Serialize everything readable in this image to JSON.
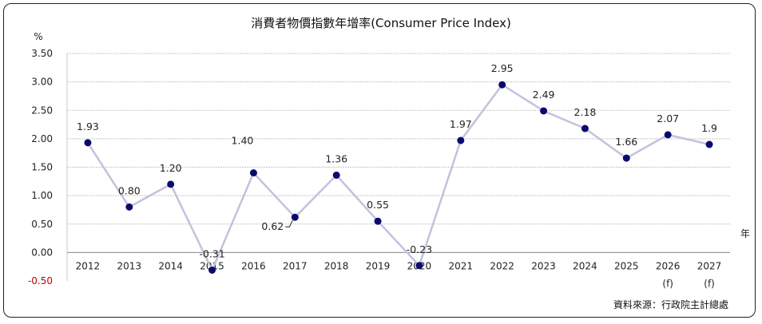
{
  "chart_data": {
    "type": "line",
    "title": "消費者物價指數年增率(Consumer Price Index)",
    "y_unit": "%",
    "x_unit": "年",
    "source": "資料來源：行政院主計總處",
    "ylim": [
      -0.5,
      3.5
    ],
    "yticks": [
      "3.50",
      "3.00",
      "2.50",
      "2.00",
      "1.50",
      "1.00",
      "0.50",
      "0.00",
      "-0.50"
    ],
    "ytick_values": [
      3.5,
      3.0,
      2.5,
      2.0,
      1.5,
      1.0,
      0.5,
      0.0,
      -0.5
    ],
    "grid": true,
    "categories": [
      "2012",
      "2013",
      "2014",
      "2015",
      "2016",
      "2017",
      "2018",
      "2019",
      "2020",
      "2021",
      "2022",
      "2023",
      "2024",
      "2025",
      "2026",
      "2027"
    ],
    "category_notes": [
      "",
      "",
      "",
      "",
      "",
      "",
      "",
      "",
      "",
      "",
      "",
      "",
      "",
      "",
      "(f)",
      "(f)"
    ],
    "values": [
      1.93,
      0.8,
      1.2,
      -0.31,
      1.4,
      0.62,
      1.36,
      0.55,
      -0.23,
      1.97,
      2.95,
      2.49,
      2.18,
      1.66,
      2.07,
      1.9
    ],
    "labels": [
      "1.93",
      "0.80",
      "1.20",
      "-0.31",
      "1.40",
      "0.62",
      "1.36",
      "0.55",
      "-0.23",
      "1.97",
      "2.95",
      "2.49",
      "2.18",
      "1.66",
      "2.07",
      "1.9"
    ],
    "line_color": "#c4c1dd",
    "marker_color": "#0a0a6e",
    "grid_color": "#c8c8c8",
    "negative_tick_color": "#c00000"
  }
}
